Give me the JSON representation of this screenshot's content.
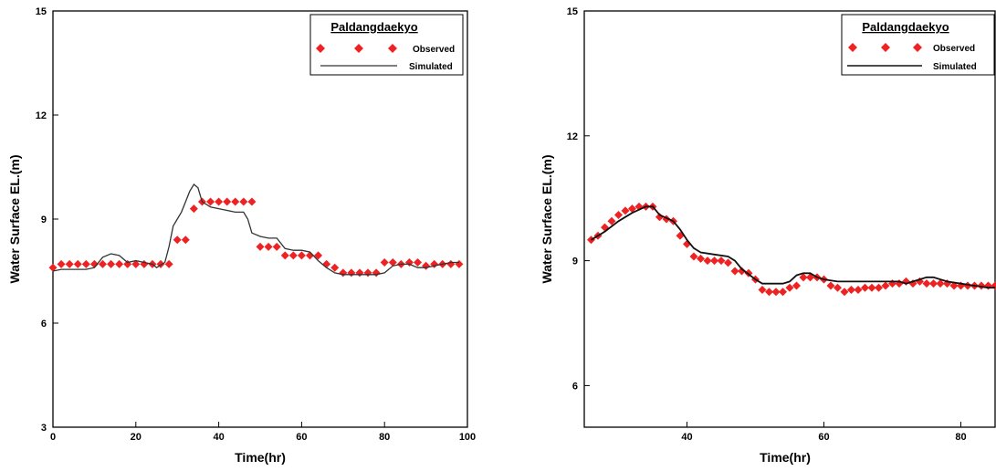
{
  "chart_data": [
    {
      "type": "line",
      "xlabel": "Time(hr)",
      "ylabel": "Water Surface EL.(m)",
      "xlim": [
        0,
        100
      ],
      "ylim": [
        3,
        15
      ],
      "xticks": [
        0,
        20,
        40,
        60,
        80,
        100
      ],
      "yticks": [
        3,
        6,
        9,
        12,
        15
      ],
      "grid": false,
      "legend": {
        "title": "Paldangdaekyo",
        "position": "top-right"
      },
      "series": [
        {
          "name": "Observed",
          "marker": "diamond",
          "color": "#ee2222",
          "x": [
            0,
            2,
            4,
            6,
            8,
            10,
            12,
            14,
            16,
            18,
            20,
            22,
            24,
            26,
            28,
            30,
            32,
            34,
            36,
            38,
            40,
            42,
            44,
            46,
            48,
            50,
            52,
            54,
            56,
            58,
            60,
            62,
            64,
            66,
            68,
            70,
            72,
            74,
            76,
            78,
            80,
            82,
            84,
            86,
            88,
            90,
            92,
            94,
            96,
            98
          ],
          "y": [
            7.6,
            7.7,
            7.7,
            7.7,
            7.7,
            7.7,
            7.7,
            7.7,
            7.7,
            7.7,
            7.7,
            7.7,
            7.7,
            7.7,
            7.7,
            8.4,
            8.4,
            9.3,
            9.5,
            9.5,
            9.5,
            9.5,
            9.5,
            9.5,
            9.5,
            8.2,
            8.2,
            8.2,
            7.95,
            7.95,
            7.95,
            7.95,
            7.95,
            7.7,
            7.6,
            7.45,
            7.45,
            7.45,
            7.45,
            7.45,
            7.75,
            7.75,
            7.7,
            7.75,
            7.75,
            7.65,
            7.7,
            7.7,
            7.7,
            7.7
          ]
        },
        {
          "name": "Simulated",
          "color": "#333333",
          "x": [
            0,
            2,
            5,
            8,
            10,
            12,
            14,
            16,
            18,
            20,
            22,
            24,
            25,
            27,
            28,
            29,
            30,
            31,
            32,
            33,
            34,
            35,
            36,
            38,
            40,
            42,
            44,
            46,
            47,
            48,
            50,
            52,
            54,
            56,
            58,
            60,
            62,
            64,
            66,
            68,
            70,
            72,
            74,
            76,
            78,
            80,
            82,
            84,
            86,
            88,
            90,
            92,
            94,
            96,
            98
          ],
          "y": [
            7.5,
            7.55,
            7.55,
            7.55,
            7.6,
            7.9,
            8.0,
            7.95,
            7.75,
            7.8,
            7.75,
            7.7,
            7.6,
            7.75,
            8.2,
            8.8,
            9.0,
            9.2,
            9.5,
            9.8,
            10.0,
            9.9,
            9.5,
            9.35,
            9.3,
            9.25,
            9.2,
            9.2,
            9.0,
            8.6,
            8.5,
            8.45,
            8.45,
            8.15,
            8.1,
            8.1,
            8.05,
            7.8,
            7.6,
            7.45,
            7.4,
            7.4,
            7.4,
            7.4,
            7.4,
            7.45,
            7.65,
            7.7,
            7.7,
            7.6,
            7.6,
            7.65,
            7.7,
            7.75,
            7.75
          ]
        }
      ]
    },
    {
      "type": "line",
      "xlabel": "Time(hr)",
      "ylabel": "Water Surface EL.(m)",
      "xlim": [
        25,
        85
      ],
      "ylim": [
        5,
        15
      ],
      "xticks": [
        40,
        60,
        80
      ],
      "yticks": [
        6,
        9,
        12,
        15
      ],
      "grid": false,
      "legend": {
        "title": "Paldangdaekyo",
        "position": "top-right"
      },
      "series": [
        {
          "name": "Observed",
          "marker": "diamond",
          "color": "#ee2222",
          "x": [
            26,
            27,
            28,
            29,
            30,
            31,
            32,
            33,
            34,
            35,
            36,
            37,
            38,
            39,
            40,
            41,
            42,
            43,
            44,
            45,
            46,
            47,
            48,
            49,
            50,
            51,
            52,
            53,
            54,
            55,
            56,
            57,
            58,
            59,
            60,
            61,
            62,
            63,
            64,
            65,
            66,
            67,
            68,
            69,
            70,
            71,
            72,
            73,
            74,
            75,
            76,
            77,
            78,
            79,
            80,
            81,
            82,
            83,
            84,
            85
          ],
          "y": [
            9.5,
            9.6,
            9.8,
            9.95,
            10.1,
            10.2,
            10.25,
            10.3,
            10.3,
            10.3,
            10.05,
            10.0,
            9.95,
            9.6,
            9.4,
            9.1,
            9.05,
            9.0,
            9.0,
            9.0,
            8.95,
            8.75,
            8.75,
            8.7,
            8.55,
            8.3,
            8.25,
            8.25,
            8.25,
            8.35,
            8.4,
            8.6,
            8.6,
            8.6,
            8.55,
            8.4,
            8.35,
            8.25,
            8.3,
            8.3,
            8.35,
            8.35,
            8.35,
            8.4,
            8.45,
            8.45,
            8.5,
            8.45,
            8.5,
            8.45,
            8.45,
            8.45,
            8.45,
            8.4,
            8.4,
            8.4,
            8.4,
            8.4,
            8.4,
            8.4
          ]
        },
        {
          "name": "Simulated",
          "color": "#111111",
          "x": [
            26,
            28,
            30,
            32,
            34,
            35,
            36,
            38,
            39,
            40,
            41,
            42,
            44,
            46,
            47,
            48,
            50,
            51,
            52,
            54,
            55,
            56,
            57,
            58,
            59,
            60,
            62,
            64,
            66,
            68,
            70,
            71,
            72,
            73,
            74,
            75,
            76,
            77,
            78,
            80,
            82,
            84,
            85
          ],
          "y": [
            9.5,
            9.7,
            9.95,
            10.15,
            10.3,
            10.3,
            10.1,
            9.95,
            9.75,
            9.5,
            9.3,
            9.2,
            9.15,
            9.1,
            9.0,
            8.8,
            8.55,
            8.45,
            8.45,
            8.45,
            8.5,
            8.65,
            8.7,
            8.7,
            8.6,
            8.55,
            8.5,
            8.5,
            8.5,
            8.5,
            8.5,
            8.5,
            8.45,
            8.5,
            8.55,
            8.6,
            8.6,
            8.55,
            8.5,
            8.45,
            8.4,
            8.35,
            8.35
          ]
        }
      ]
    }
  ]
}
